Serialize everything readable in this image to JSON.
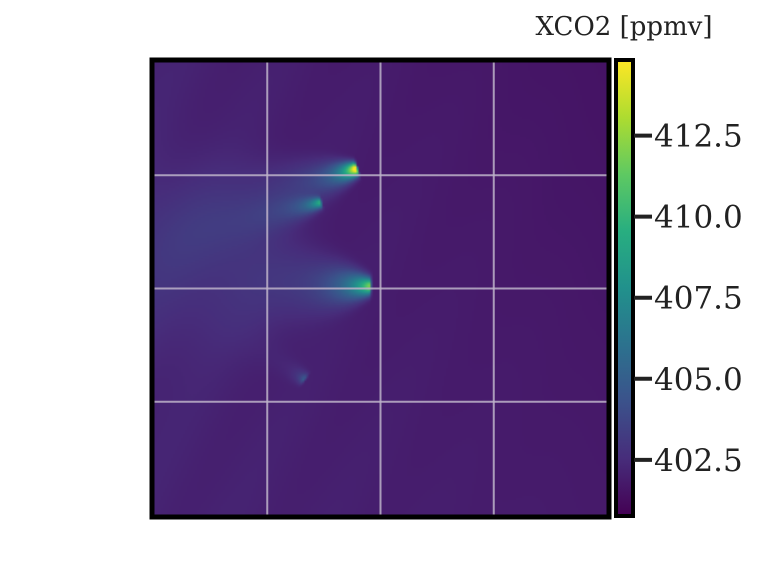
{
  "chart_data": {
    "type": "heatmap",
    "colormap": "viridis",
    "colorbar": {
      "label": "XCO2 [ppmv]",
      "range": [
        400.8,
        414.8
      ],
      "ticks": [
        402.5,
        405.0,
        407.5,
        410.0,
        412.5
      ],
      "tick_labels": [
        "402.5",
        "405.0",
        "407.5",
        "410.0",
        "412.5"
      ],
      "placement": "right"
    },
    "grid": true,
    "grid_divisions": {
      "x": 4,
      "y": 4
    },
    "background_level": 401.8,
    "plumes": [
      {
        "source": [
          0.445,
          0.235
        ],
        "peak": 414.8,
        "tail_dir": [
          -1.0,
          0.3
        ],
        "length": 0.22,
        "width": 0.01
      },
      {
        "source": [
          0.475,
          0.495
        ],
        "peak": 410.5,
        "tail_dir": [
          -1.0,
          -0.03
        ],
        "length": 0.36,
        "width": 0.013
      },
      {
        "source": [
          0.365,
          0.31
        ],
        "peak": 408.0,
        "tail_dir": [
          -1.0,
          0.25
        ],
        "length": 0.22,
        "width": 0.008
      },
      {
        "source": [
          0.33,
          0.7
        ],
        "peak": 404.2,
        "tail_dir": [
          -1.0,
          -0.7
        ],
        "length": 0.1,
        "width": 0.009
      }
    ]
  }
}
